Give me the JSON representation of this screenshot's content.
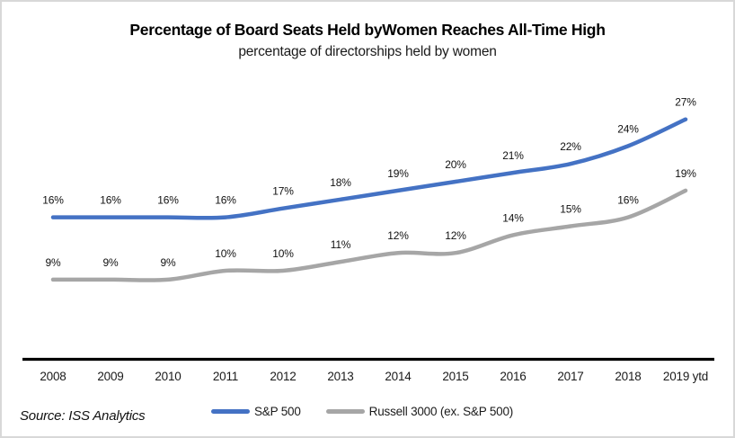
{
  "page": {
    "background": "#ffffff",
    "border_color": "#d8d8d8"
  },
  "header": {
    "title": "Percentage of Board Seats Held byWomen Reaches All-Time High",
    "subtitle": "percentage of directorships held by women"
  },
  "chart_data": {
    "type": "line",
    "title": "Percentage of Board Seats Held byWomen Reaches All-Time High",
    "subtitle": "percentage of directorships held by women",
    "categories": [
      "2008",
      "2009",
      "2010",
      "2011",
      "2012",
      "2013",
      "2014",
      "2015",
      "2016",
      "2017",
      "2018",
      "2019 ytd"
    ],
    "series": [
      {
        "name": "S&P 500",
        "color": "#4472C4",
        "values": [
          16,
          16,
          16,
          16,
          17,
          18,
          19,
          20,
          21,
          22,
          24,
          27
        ]
      },
      {
        "name": "Russell 3000 (ex. S&P 500)",
        "color": "#A6A6A6",
        "values": [
          9,
          9,
          9,
          10,
          10,
          11,
          12,
          12,
          14,
          15,
          16,
          19
        ]
      }
    ],
    "value_suffix": "%",
    "data_labels": true,
    "ylim": [
      0,
      32
    ],
    "grid": false,
    "legend_position": "bottom-center",
    "axis_color": "#000000"
  },
  "footer": {
    "source": "Source: ISS Analytics"
  }
}
